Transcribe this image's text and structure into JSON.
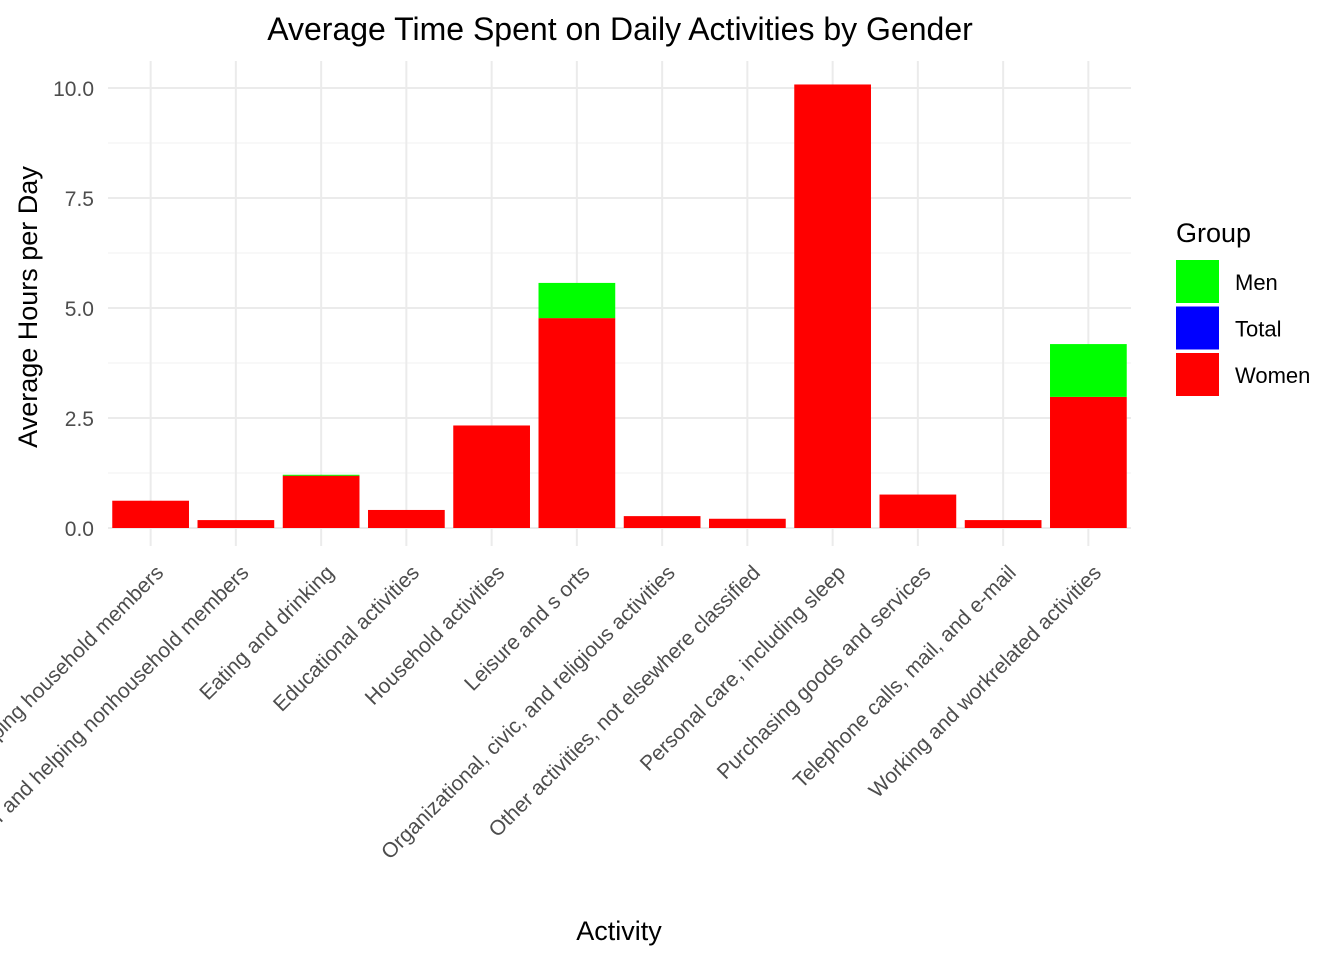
{
  "chart_data": {
    "type": "bar",
    "title": "Average Time Spent on Daily Activities by Gender",
    "xlabel": "Activity",
    "ylabel": "Average Hours per Day",
    "ylim": [
      -0.4,
      10.6
    ],
    "yticks": [
      "0.0",
      "2.5",
      "5.0",
      "7.5",
      "10.0"
    ],
    "ytick_values": [
      0,
      2.5,
      5,
      7.5,
      10
    ],
    "stacked": true,
    "grid": true,
    "legend": {
      "title": "Group",
      "placement": "right"
    },
    "categories": [
      "Caring for and helping household members",
      "Caring for and helping nonhousehold members",
      "Eating and drinking",
      "Educational activities",
      "Household activities",
      "Leisure and s orts",
      "Organizational, civic, and religious activities",
      "Other activities, not elsewhere classified",
      "Personal care, including sleep",
      "Purchasing goods and services",
      "Telephone calls, mail, and e-mail",
      "Working and workrelated activities"
    ],
    "series": [
      {
        "name": "Men",
        "color": "#00ff00",
        "values": [
          0.0,
          0.0,
          0.02,
          0.0,
          0.0,
          0.8,
          0.0,
          0.0,
          0.0,
          0.0,
          0.0,
          1.2
        ]
      },
      {
        "name": "Total",
        "color": "#0000ff",
        "values": [
          0,
          0,
          0,
          0,
          0,
          0,
          0,
          0,
          0,
          0,
          0,
          0
        ]
      },
      {
        "name": "Women",
        "color": "#ff0000",
        "values": [
          0.62,
          0.18,
          1.19,
          0.41,
          2.33,
          4.77,
          0.27,
          0.21,
          10.08,
          0.76,
          0.18,
          2.98
        ]
      }
    ]
  }
}
